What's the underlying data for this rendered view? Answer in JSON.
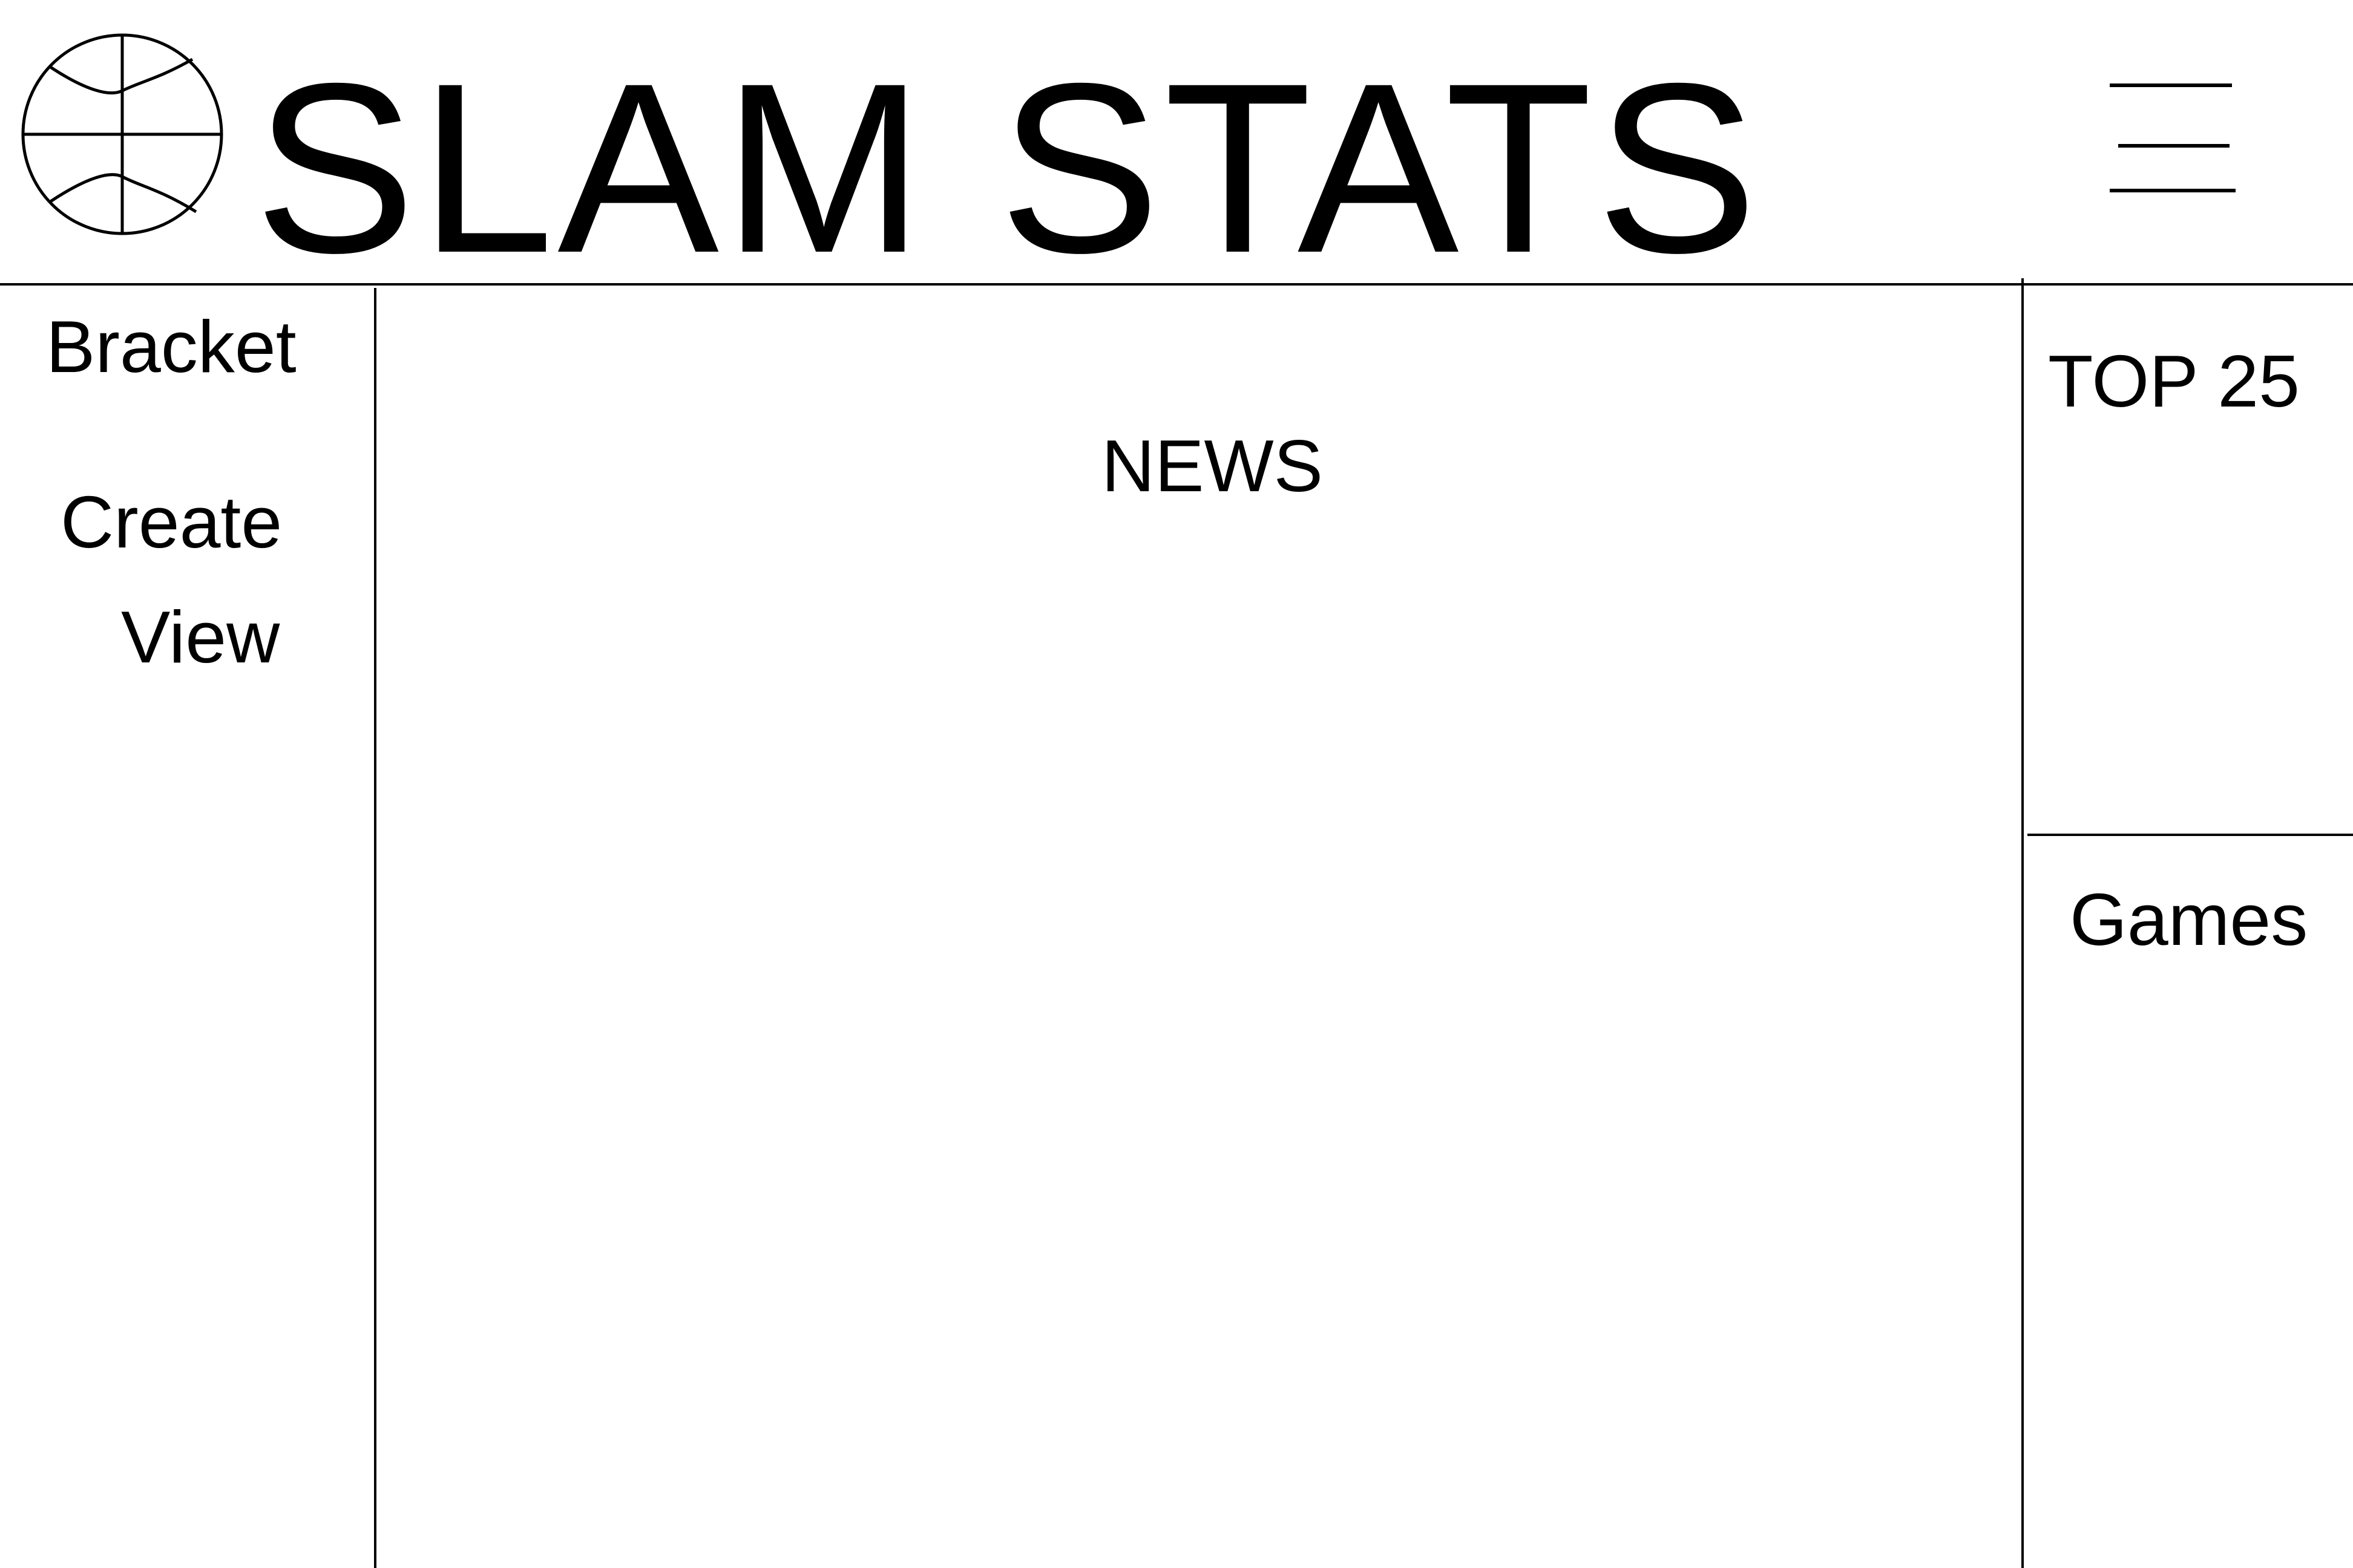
{
  "header": {
    "title": "SLAM STATS",
    "logo_icon": "basketball-icon",
    "menu_icon": "hamburger-menu-icon"
  },
  "sidebar": {
    "section_label": "Bracket",
    "items": [
      {
        "label": "Create"
      },
      {
        "label": "View"
      }
    ]
  },
  "main": {
    "heading": "NEWS"
  },
  "right_panel": {
    "top_heading": "TOP 25",
    "bottom_heading": "Games"
  },
  "colors": {
    "background": "#ffffff",
    "foreground": "#000000"
  }
}
